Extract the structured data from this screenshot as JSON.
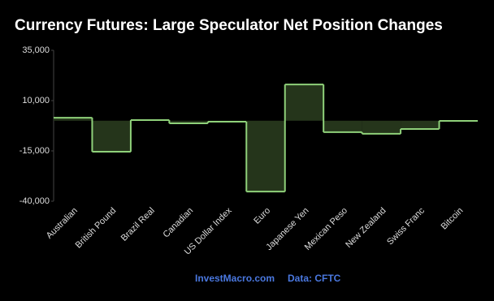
{
  "chart_data": {
    "type": "step-area",
    "title": "Currency Futures: Large Speculator Net Position Changes",
    "categories": [
      "Australian",
      "British Pound",
      "Brazil Real",
      "Canadian",
      "US Dollar Index",
      "Euro",
      "Japanese Yen",
      "Mexican Peso",
      "New Zealand",
      "Swiss Franc",
      "Bitcoin"
    ],
    "values": [
      1500,
      -15400,
      300,
      -1300,
      -500,
      -35200,
      18000,
      -5700,
      -6500,
      -4100,
      -100
    ],
    "color": "#8fd17a",
    "fill": "#25351b",
    "ylim": [
      -40000,
      35000
    ],
    "yticks": [
      {
        "value": 35000,
        "label": "35,000"
      },
      {
        "value": 10000,
        "label": "10,000"
      },
      {
        "value": -15000,
        "label": "-15,000"
      },
      {
        "value": -40000,
        "label": "-40,000"
      }
    ],
    "footer": {
      "source_site": "InvestMacro.com",
      "data_source": "Data: CFTC"
    }
  }
}
